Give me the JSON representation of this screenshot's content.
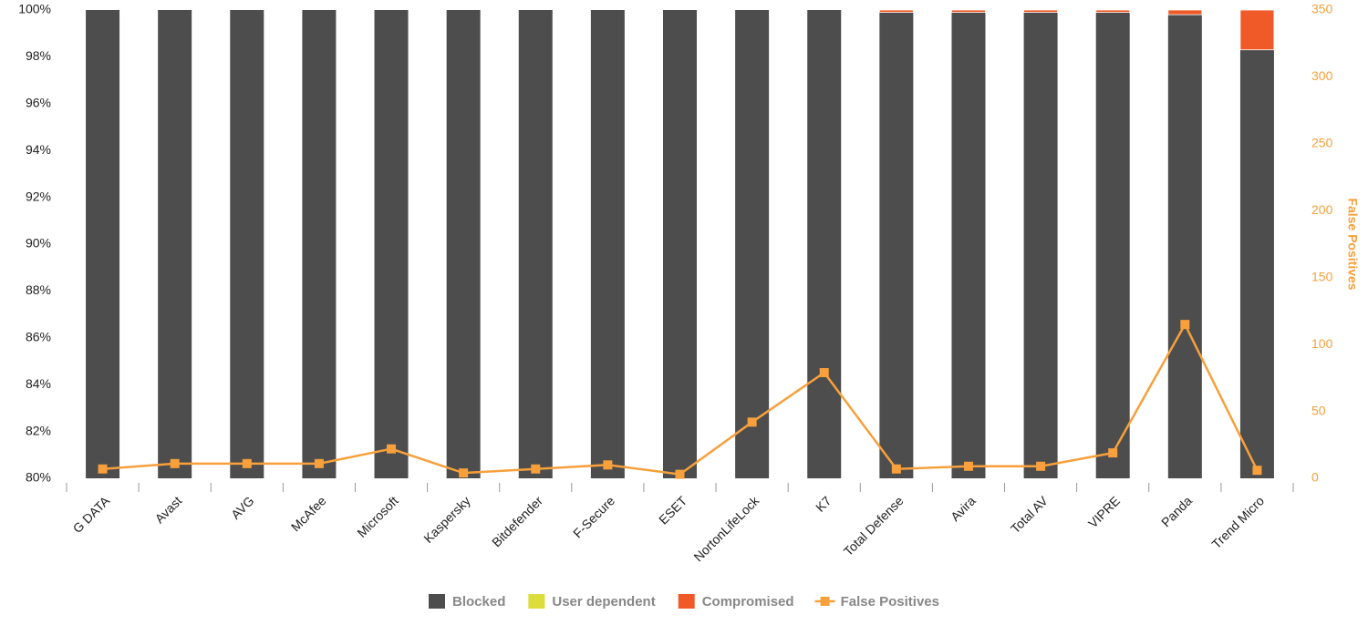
{
  "chart_data": {
    "type": "bar",
    "stacked": true,
    "categories": [
      "G DATA",
      "Avast",
      "AVG",
      "McAfee",
      "Microsoft",
      "Kaspersky",
      "Bitdefender",
      "F-Secure",
      "ESET",
      "NortonLifeLock",
      "K7",
      "Total Defense",
      "Avira",
      "Total AV",
      "VIPRE",
      "Panda",
      "Trend Micro"
    ],
    "series": [
      {
        "name": "Blocked",
        "color": "#4d4d4d",
        "values": [
          100,
          100,
          100,
          100,
          100,
          100,
          100,
          100,
          100,
          100,
          100,
          99.9,
          99.9,
          99.9,
          99.9,
          99.8,
          98.3
        ]
      },
      {
        "name": "User dependent",
        "color": "#dcdc3a",
        "values": [
          0,
          0,
          0,
          0,
          0,
          0,
          0,
          0,
          0,
          0,
          0,
          0,
          0,
          0,
          0,
          0,
          0
        ]
      },
      {
        "name": "Compromised",
        "color": "#f05a28",
        "values": [
          0,
          0,
          0,
          0,
          0,
          0,
          0,
          0,
          0,
          0,
          0,
          0.1,
          0.1,
          0.1,
          0.1,
          0.2,
          1.7
        ]
      },
      {
        "name": "False Positives",
        "color": "#f7a03c",
        "axis": "y2",
        "values": [
          7,
          11,
          11,
          11,
          22,
          4,
          7,
          10,
          3,
          42,
          79,
          7,
          9,
          9,
          19,
          115,
          6
        ]
      }
    ],
    "ylim": [
      80,
      100
    ],
    "yticks": [
      {
        "value": 80,
        "label": "80%"
      },
      {
        "value": 82,
        "label": "82%"
      },
      {
        "value": 84,
        "label": "84%"
      },
      {
        "value": 86,
        "label": "86%"
      },
      {
        "value": 88,
        "label": "88%"
      },
      {
        "value": 90,
        "label": "90%"
      },
      {
        "value": 92,
        "label": "92%"
      },
      {
        "value": 94,
        "label": "94%"
      },
      {
        "value": 96,
        "label": "96%"
      },
      {
        "value": 98,
        "label": "98%"
      },
      {
        "value": 100,
        "label": "100%"
      }
    ],
    "y2label": "False Positives",
    "y2lim": [
      0,
      350
    ],
    "y2ticks": [
      0,
      50,
      100,
      150,
      200,
      250,
      300,
      350
    ],
    "legend": "bottom"
  }
}
